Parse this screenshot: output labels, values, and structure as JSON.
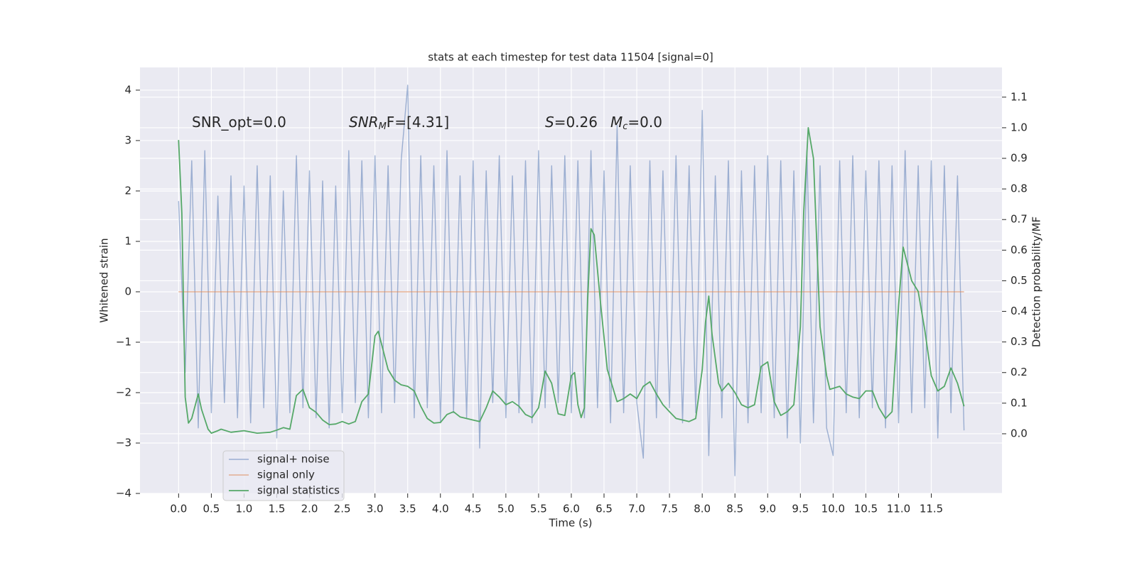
{
  "chart_data": {
    "type": "line",
    "title": "stats at each timestep for test data 11504 [signal=0]",
    "xlabel": "Time (s)",
    "ylabel": "Whitened strain",
    "y2label": "Detection probability/MF",
    "annotations": [
      {
        "base": "SNR_opt=0.0"
      },
      {
        "base": "SNR",
        "sub": "M",
        "rest": "F=[4.31]"
      },
      {
        "base": "S",
        "rest": "=0.26"
      },
      {
        "base": "M",
        "sub": "c",
        "rest": "=0.0"
      }
    ],
    "xlim": [
      -0.59,
      12.58
    ],
    "ylim": [
      -4.0,
      4.45
    ],
    "y2lim": [
      -0.195,
      1.197
    ],
    "xticks": [
      {
        "value": 0,
        "label": "0.0"
      },
      {
        "value": 0.5,
        "label": "0.5"
      },
      {
        "value": 1,
        "label": "1.0"
      },
      {
        "value": 1.5,
        "label": "1.5"
      },
      {
        "value": 2,
        "label": "2.0"
      },
      {
        "value": 2.5,
        "label": "2.5"
      },
      {
        "value": 3,
        "label": "3.0"
      },
      {
        "value": 3.5,
        "label": "3.5"
      },
      {
        "value": 4,
        "label": "4.0"
      },
      {
        "value": 4.5,
        "label": "4.5"
      },
      {
        "value": 5,
        "label": "5.0"
      },
      {
        "value": 5.5,
        "label": "5.5"
      },
      {
        "value": 6,
        "label": "6.0"
      },
      {
        "value": 6.5,
        "label": "6.5"
      },
      {
        "value": 7,
        "label": "7.0"
      },
      {
        "value": 7.5,
        "label": "7.5"
      },
      {
        "value": 8,
        "label": "8.0"
      },
      {
        "value": 8.5,
        "label": "8.5"
      },
      {
        "value": 9,
        "label": "9.0"
      },
      {
        "value": 9.5,
        "label": "9.5"
      },
      {
        "value": 10,
        "label": "10.0"
      },
      {
        "value": 10.5,
        "label": "10.5"
      },
      {
        "value": 11,
        "label": "11.0"
      },
      {
        "value": 11.5,
        "label": "11.5"
      }
    ],
    "yticks": [
      {
        "value": -4,
        "label": "−4"
      },
      {
        "value": -3,
        "label": "−3"
      },
      {
        "value": -2,
        "label": "−2"
      },
      {
        "value": -1,
        "label": "−1"
      },
      0,
      1,
      2,
      3,
      4
    ],
    "y2ticks": [
      {
        "value": 0,
        "label": "0.0"
      },
      {
        "value": 0.1,
        "label": "0.1"
      },
      {
        "value": 0.2,
        "label": "0.2"
      },
      {
        "value": 0.3,
        "label": "0.3"
      },
      {
        "value": 0.4,
        "label": "0.4"
      },
      {
        "value": 0.5,
        "label": "0.5"
      },
      {
        "value": 0.6,
        "label": "0.6"
      },
      {
        "value": 0.7,
        "label": "0.7"
      },
      {
        "value": 0.8,
        "label": "0.8"
      },
      {
        "value": 0.9,
        "label": "0.9"
      },
      {
        "value": 1,
        "label": "1.0"
      },
      {
        "value": 1.1,
        "label": "1.1"
      }
    ],
    "grid": true,
    "legend": "lower left",
    "series": [
      {
        "name": "signal+ noise",
        "color": "#4c72b0",
        "x": [
          0,
          0.1,
          0.2,
          0.3,
          0.4,
          0.5,
          0.6,
          0.7,
          0.8,
          0.9,
          1,
          1.1,
          1.2,
          1.3,
          1.4,
          1.5,
          1.6,
          1.7,
          1.8,
          1.9,
          2,
          2.1,
          2.2,
          2.3,
          2.4,
          2.5,
          2.6,
          2.7,
          2.8,
          2.9,
          3,
          3.1,
          3.2,
          3.3,
          3.4,
          3.5,
          3.6,
          3.7,
          3.8,
          3.9,
          4,
          4.1,
          4.2,
          4.3,
          4.4,
          4.5,
          4.6,
          4.7,
          4.8,
          4.9,
          5,
          5.1,
          5.2,
          5.3,
          5.4,
          5.5,
          5.6,
          5.7,
          5.8,
          5.9,
          6,
          6.1,
          6.2,
          6.3,
          6.4,
          6.5,
          6.6,
          6.7,
          6.8,
          6.9,
          7,
          7.1,
          7.2,
          7.3,
          7.4,
          7.5,
          7.6,
          7.7,
          7.8,
          7.9,
          8,
          8.1,
          8.2,
          8.3,
          8.4,
          8.5,
          8.6,
          8.7,
          8.8,
          8.9,
          9,
          9.1,
          9.2,
          9.3,
          9.4,
          9.5,
          9.6,
          9.7,
          9.8,
          9.9,
          10,
          10.1,
          10.2,
          10.3,
          10.4,
          10.5,
          10.6,
          10.7,
          10.8,
          10.9,
          11,
          11.1,
          11.2,
          11.3,
          11.4,
          11.5,
          11.6,
          11.7,
          11.8,
          11.9,
          12
        ],
        "values": [
          1.8,
          -1.6,
          2.6,
          -2.7,
          2.8,
          -2.4,
          1.9,
          -2.2,
          2.3,
          -2.5,
          2.1,
          -2.6,
          2.5,
          -2.3,
          2.3,
          -2.9,
          2.0,
          -2.4,
          2.7,
          -2.3,
          2.4,
          -2.5,
          2.2,
          -2.7,
          2.1,
          -2.4,
          2.8,
          -2.2,
          2.6,
          -2.5,
          2.7,
          -2.4,
          2.5,
          -2.2,
          2.6,
          4.1,
          -2.5,
          2.7,
          -2.3,
          2.5,
          -2.6,
          2.8,
          -2.4,
          2.3,
          -2.5,
          2.6,
          -3.1,
          2.4,
          -2.2,
          2.7,
          -2.5,
          2.3,
          -2.4,
          2.6,
          -2.6,
          2.8,
          -2.3,
          2.5,
          -2.2,
          2.7,
          -2.4,
          2.6,
          -2.5,
          2.8,
          -2.3,
          2.4,
          -2.6,
          3.3,
          -2.4,
          2.5,
          -2.2,
          -3.3,
          2.6,
          -2.5,
          2.4,
          -2.3,
          2.7,
          -2.6,
          2.5,
          -2.4,
          3.6,
          -3.25,
          2.3,
          -2.5,
          2.6,
          -3.65,
          2.4,
          -2.6,
          2.5,
          -2.4,
          2.7,
          -2.5,
          2.6,
          -2.9,
          2.4,
          -3.0,
          2.8,
          -2.6,
          2.5,
          -2.7,
          -3.25,
          2.6,
          -2.4,
          2.7,
          -2.5,
          2.4,
          -2.3,
          2.6,
          -2.7,
          2.5,
          -2.6,
          2.8,
          -2.4,
          2.5,
          -2.3,
          2.6,
          -2.9,
          2.5,
          -2.4,
          2.3,
          -2.75
        ]
      },
      {
        "name": "signal only",
        "color": "#dd8452",
        "x": [
          0,
          12
        ],
        "values": [
          0,
          0
        ]
      },
      {
        "name": "signal statistics",
        "color": "#55a868",
        "axis": "y2",
        "x": [
          0,
          0.05,
          0.1,
          0.15,
          0.2,
          0.3,
          0.35,
          0.45,
          0.5,
          0.6,
          0.65,
          0.8,
          1,
          1.2,
          1.4,
          1.5,
          1.6,
          1.7,
          1.8,
          1.9,
          2,
          2.1,
          2.2,
          2.3,
          2.4,
          2.5,
          2.6,
          2.7,
          2.8,
          2.9,
          3,
          3.05,
          3.2,
          3.3,
          3.4,
          3.5,
          3.6,
          3.7,
          3.8,
          3.9,
          4,
          4.1,
          4.2,
          4.3,
          4.5,
          4.6,
          4.7,
          4.8,
          4.9,
          5,
          5.1,
          5.2,
          5.3,
          5.4,
          5.5,
          5.6,
          5.7,
          5.8,
          5.9,
          6,
          6.05,
          6.1,
          6.15,
          6.2,
          6.25,
          6.3,
          6.35,
          6.45,
          6.55,
          6.7,
          6.8,
          6.9,
          7,
          7.1,
          7.2,
          7.3,
          7.4,
          7.5,
          7.6,
          7.8,
          7.9,
          8,
          8.05,
          8.1,
          8.15,
          8.25,
          8.3,
          8.4,
          8.5,
          8.6,
          8.7,
          8.8,
          8.9,
          9,
          9.1,
          9.2,
          9.3,
          9.4,
          9.5,
          9.55,
          9.62,
          9.7,
          9.8,
          9.9,
          9.95,
          10.1,
          10.2,
          10.3,
          10.4,
          10.5,
          10.6,
          10.7,
          10.8,
          10.9,
          11,
          11.07,
          11.2,
          11.3,
          11.4,
          11.5,
          11.6,
          11.7,
          11.8,
          11.9,
          12
        ],
        "values": [
          0.96,
          0.72,
          0.12,
          0.035,
          0.05,
          0.13,
          0.08,
          0.015,
          0.002,
          0.01,
          0.015,
          0.005,
          0.01,
          0.002,
          0.005,
          0.012,
          0.02,
          0.015,
          0.125,
          0.145,
          0.085,
          0.07,
          0.045,
          0.03,
          0.032,
          0.04,
          0.032,
          0.04,
          0.105,
          0.13,
          0.32,
          0.335,
          0.21,
          0.175,
          0.16,
          0.155,
          0.14,
          0.09,
          0.05,
          0.035,
          0.037,
          0.063,
          0.072,
          0.055,
          0.045,
          0.04,
          0.085,
          0.14,
          0.12,
          0.095,
          0.105,
          0.09,
          0.063,
          0.053,
          0.085,
          0.205,
          0.165,
          0.065,
          0.06,
          0.19,
          0.2,
          0.095,
          0.053,
          0.085,
          0.44,
          0.67,
          0.65,
          0.42,
          0.21,
          0.105,
          0.115,
          0.13,
          0.115,
          0.155,
          0.17,
          0.13,
          0.095,
          0.072,
          0.05,
          0.04,
          0.05,
          0.21,
          0.365,
          0.45,
          0.325,
          0.165,
          0.14,
          0.165,
          0.135,
          0.095,
          0.085,
          0.095,
          0.22,
          0.235,
          0.105,
          0.06,
          0.072,
          0.095,
          0.35,
          0.72,
          1.0,
          0.9,
          0.35,
          0.19,
          0.145,
          0.155,
          0.13,
          0.12,
          0.115,
          0.14,
          0.14,
          0.085,
          0.05,
          0.072,
          0.42,
          0.61,
          0.5,
          0.465,
          0.34,
          0.19,
          0.14,
          0.155,
          0.215,
          0.165,
          0.09
        ]
      }
    ]
  }
}
